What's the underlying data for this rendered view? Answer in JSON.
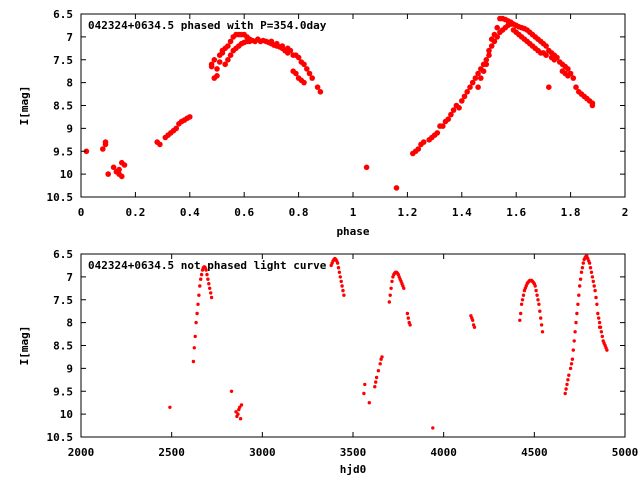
{
  "chart_data": [
    {
      "type": "scatter",
      "title": "042324+0634.5 phased with P=354.0day",
      "xlabel": "phase",
      "ylabel": "I[mag]",
      "xlim": [
        0,
        2
      ],
      "ylim": [
        10.5,
        6.5
      ],
      "y_inverted": true,
      "xticks": [
        0,
        0.2,
        0.4,
        0.6,
        0.8,
        1,
        1.2,
        1.4,
        1.6,
        1.8,
        2
      ],
      "xtick_labels": [
        "0",
        "0.2",
        "0.4",
        "0.6",
        "0.8",
        "1",
        "1.2",
        "1.4",
        "1.6",
        "1.8",
        "2"
      ],
      "yticks": [
        6.5,
        7,
        7.5,
        8,
        8.5,
        9,
        9.5,
        10,
        10.5
      ],
      "ytick_labels": [
        "6.5",
        "7",
        "7.5",
        "8",
        "8.5",
        "9",
        "9.5",
        "10",
        "10.5"
      ],
      "grid": false,
      "marker": "filled-circle",
      "color": "#ff0000",
      "points": [
        [
          0.02,
          9.5
        ],
        [
          0.08,
          9.45
        ],
        [
          0.09,
          9.35
        ],
        [
          0.09,
          9.3
        ],
        [
          0.1,
          10.0
        ],
        [
          0.12,
          9.85
        ],
        [
          0.13,
          9.95
        ],
        [
          0.14,
          10.0
        ],
        [
          0.14,
          9.9
        ],
        [
          0.15,
          10.05
        ],
        [
          0.15,
          9.75
        ],
        [
          0.16,
          9.8
        ],
        [
          0.28,
          9.3
        ],
        [
          0.29,
          9.35
        ],
        [
          0.31,
          9.2
        ],
        [
          0.32,
          9.15
        ],
        [
          0.33,
          9.1
        ],
        [
          0.34,
          9.05
        ],
        [
          0.35,
          9.0
        ],
        [
          0.36,
          8.9
        ],
        [
          0.37,
          8.85
        ],
        [
          0.38,
          8.82
        ],
        [
          0.39,
          8.78
        ],
        [
          0.4,
          8.75
        ],
        [
          0.48,
          7.65
        ],
        [
          0.48,
          7.6
        ],
        [
          0.49,
          7.9
        ],
        [
          0.49,
          7.5
        ],
        [
          0.5,
          7.85
        ],
        [
          0.5,
          7.7
        ],
        [
          0.51,
          7.55
        ],
        [
          0.51,
          7.4
        ],
        [
          0.52,
          7.35
        ],
        [
          0.52,
          7.3
        ],
        [
          0.53,
          7.25
        ],
        [
          0.53,
          7.6
        ],
        [
          0.54,
          7.2
        ],
        [
          0.54,
          7.5
        ],
        [
          0.55,
          7.1
        ],
        [
          0.55,
          7.4
        ],
        [
          0.56,
          7.0
        ],
        [
          0.56,
          7.3
        ],
        [
          0.57,
          6.95
        ],
        [
          0.57,
          7.25
        ],
        [
          0.58,
          6.95
        ],
        [
          0.58,
          7.2
        ],
        [
          0.59,
          6.95
        ],
        [
          0.59,
          7.15
        ],
        [
          0.6,
          6.95
        ],
        [
          0.6,
          7.12
        ],
        [
          0.61,
          7.0
        ],
        [
          0.61,
          7.1
        ],
        [
          0.62,
          7.05
        ],
        [
          0.62,
          7.1
        ],
        [
          0.63,
          7.08
        ],
        [
          0.64,
          7.1
        ],
        [
          0.65,
          7.05
        ],
        [
          0.66,
          7.1
        ],
        [
          0.67,
          7.08
        ],
        [
          0.68,
          7.1
        ],
        [
          0.69,
          7.12
        ],
        [
          0.7,
          7.15
        ],
        [
          0.7,
          7.1
        ],
        [
          0.71,
          7.18
        ],
        [
          0.72,
          7.2
        ],
        [
          0.72,
          7.15
        ],
        [
          0.73,
          7.22
        ],
        [
          0.74,
          7.25
        ],
        [
          0.74,
          7.2
        ],
        [
          0.75,
          7.3
        ],
        [
          0.76,
          7.35
        ],
        [
          0.76,
          7.25
        ],
        [
          0.77,
          7.3
        ],
        [
          0.78,
          7.75
        ],
        [
          0.78,
          7.4
        ],
        [
          0.79,
          7.8
        ],
        [
          0.79,
          7.4
        ],
        [
          0.8,
          7.9
        ],
        [
          0.8,
          7.45
        ],
        [
          0.81,
          7.95
        ],
        [
          0.81,
          7.55
        ],
        [
          0.82,
          8.0
        ],
        [
          0.82,
          7.6
        ],
        [
          0.83,
          7.7
        ],
        [
          0.84,
          7.8
        ],
        [
          0.85,
          7.9
        ],
        [
          0.87,
          8.1
        ],
        [
          0.88,
          8.2
        ],
        [
          1.05,
          9.85
        ],
        [
          1.16,
          10.3
        ],
        [
          1.22,
          9.55
        ],
        [
          1.23,
          9.5
        ],
        [
          1.24,
          9.45
        ],
        [
          1.25,
          9.35
        ],
        [
          1.26,
          9.3
        ],
        [
          1.28,
          9.25
        ],
        [
          1.29,
          9.2
        ],
        [
          1.3,
          9.15
        ],
        [
          1.31,
          9.1
        ],
        [
          1.32,
          8.95
        ],
        [
          1.33,
          8.95
        ],
        [
          1.34,
          8.85
        ],
        [
          1.35,
          8.8
        ],
        [
          1.36,
          8.7
        ],
        [
          1.37,
          8.6
        ],
        [
          1.38,
          8.5
        ],
        [
          1.39,
          8.55
        ],
        [
          1.4,
          8.4
        ],
        [
          1.41,
          8.3
        ],
        [
          1.42,
          8.2
        ],
        [
          1.43,
          8.1
        ],
        [
          1.44,
          8.0
        ],
        [
          1.45,
          7.9
        ],
        [
          1.46,
          7.8
        ],
        [
          1.46,
          8.1
        ],
        [
          1.47,
          7.7
        ],
        [
          1.47,
          7.9
        ],
        [
          1.48,
          7.6
        ],
        [
          1.48,
          7.75
        ],
        [
          1.49,
          7.5
        ],
        [
          1.49,
          7.6
        ],
        [
          1.5,
          7.4
        ],
        [
          1.5,
          7.3
        ],
        [
          1.51,
          7.2
        ],
        [
          1.51,
          7.05
        ],
        [
          1.52,
          7.1
        ],
        [
          1.52,
          6.95
        ],
        [
          1.53,
          7.0
        ],
        [
          1.53,
          6.8
        ],
        [
          1.54,
          6.9
        ],
        [
          1.54,
          6.6
        ],
        [
          1.55,
          6.85
        ],
        [
          1.55,
          6.6
        ],
        [
          1.56,
          6.8
        ],
        [
          1.56,
          6.62
        ],
        [
          1.57,
          6.75
        ],
        [
          1.57,
          6.65
        ],
        [
          1.58,
          6.72
        ],
        [
          1.58,
          6.68
        ],
        [
          1.59,
          6.72
        ],
        [
          1.59,
          6.85
        ],
        [
          1.6,
          6.75
        ],
        [
          1.6,
          6.9
        ],
        [
          1.61,
          6.78
        ],
        [
          1.61,
          6.95
        ],
        [
          1.62,
          6.8
        ],
        [
          1.62,
          7.0
        ],
        [
          1.63,
          6.82
        ],
        [
          1.63,
          7.05
        ],
        [
          1.64,
          6.85
        ],
        [
          1.64,
          7.1
        ],
        [
          1.65,
          6.9
        ],
        [
          1.65,
          7.15
        ],
        [
          1.66,
          6.95
        ],
        [
          1.66,
          7.2
        ],
        [
          1.67,
          7.0
        ],
        [
          1.67,
          7.25
        ],
        [
          1.68,
          7.05
        ],
        [
          1.68,
          7.3
        ],
        [
          1.69,
          7.1
        ],
        [
          1.69,
          7.35
        ],
        [
          1.7,
          7.15
        ],
        [
          1.7,
          7.35
        ],
        [
          1.71,
          7.2
        ],
        [
          1.71,
          7.4
        ],
        [
          1.72,
          7.3
        ],
        [
          1.72,
          8.1
        ],
        [
          1.73,
          7.35
        ],
        [
          1.73,
          7.45
        ],
        [
          1.74,
          7.4
        ],
        [
          1.74,
          7.5
        ],
        [
          1.75,
          7.45
        ],
        [
          1.76,
          7.55
        ],
        [
          1.77,
          7.6
        ],
        [
          1.77,
          7.75
        ],
        [
          1.78,
          7.65
        ],
        [
          1.78,
          7.8
        ],
        [
          1.79,
          7.7
        ],
        [
          1.79,
          7.85
        ],
        [
          1.8,
          7.8
        ],
        [
          1.81,
          7.9
        ],
        [
          1.82,
          8.1
        ],
        [
          1.83,
          8.2
        ],
        [
          1.84,
          8.25
        ],
        [
          1.85,
          8.3
        ],
        [
          1.86,
          8.35
        ],
        [
          1.87,
          8.4
        ],
        [
          1.88,
          8.45
        ],
        [
          1.88,
          8.5
        ]
      ]
    },
    {
      "type": "scatter",
      "title": "042324+0634.5 not phased light curve",
      "xlabel": "hjd0",
      "ylabel": "I[mag]",
      "xlim": [
        2000,
        5000
      ],
      "ylim": [
        10.5,
        6.5
      ],
      "y_inverted": true,
      "xticks": [
        2000,
        2500,
        3000,
        3500,
        4000,
        4500,
        5000
      ],
      "xtick_labels": [
        "2000",
        "2500",
        "3000",
        "3500",
        "4000",
        "4500",
        "5000"
      ],
      "yticks": [
        6.5,
        7,
        7.5,
        8,
        8.5,
        9,
        9.5,
        10,
        10.5
      ],
      "ytick_labels": [
        "6.5",
        "7",
        "7.5",
        "8",
        "8.5",
        "9",
        "9.5",
        "10",
        "10.5"
      ],
      "grid": false,
      "marker": "small-dot",
      "color": "#ff0000",
      "points": [
        [
          2490,
          9.85
        ],
        [
          2620,
          8.85
        ],
        [
          2625,
          8.55
        ],
        [
          2630,
          8.3
        ],
        [
          2635,
          8.0
        ],
        [
          2640,
          7.8
        ],
        [
          2645,
          7.6
        ],
        [
          2650,
          7.4
        ],
        [
          2655,
          7.2
        ],
        [
          2660,
          7.05
        ],
        [
          2665,
          6.95
        ],
        [
          2670,
          6.85
        ],
        [
          2675,
          6.8
        ],
        [
          2680,
          6.78
        ],
        [
          2685,
          6.8
        ],
        [
          2690,
          6.85
        ],
        [
          2695,
          6.95
        ],
        [
          2700,
          7.05
        ],
        [
          2705,
          7.15
        ],
        [
          2710,
          7.25
        ],
        [
          2715,
          7.35
        ],
        [
          2720,
          7.45
        ],
        [
          2830,
          9.5
        ],
        [
          2855,
          9.95
        ],
        [
          2860,
          10.05
        ],
        [
          2865,
          10.0
        ],
        [
          2870,
          9.9
        ],
        [
          2875,
          9.85
        ],
        [
          2880,
          10.1
        ],
        [
          2885,
          9.8
        ],
        [
          3380,
          6.75
        ],
        [
          3385,
          6.7
        ],
        [
          3390,
          6.65
        ],
        [
          3395,
          6.62
        ],
        [
          3400,
          6.6
        ],
        [
          3405,
          6.62
        ],
        [
          3410,
          6.65
        ],
        [
          3415,
          6.7
        ],
        [
          3420,
          6.8
        ],
        [
          3425,
          6.9
        ],
        [
          3430,
          7.0
        ],
        [
          3435,
          7.1
        ],
        [
          3440,
          7.2
        ],
        [
          3445,
          7.3
        ],
        [
          3450,
          7.4
        ],
        [
          3560,
          9.55
        ],
        [
          3565,
          9.35
        ],
        [
          3590,
          9.75
        ],
        [
          3620,
          9.4
        ],
        [
          3625,
          9.3
        ],
        [
          3630,
          9.2
        ],
        [
          3640,
          9.05
        ],
        [
          3650,
          8.9
        ],
        [
          3655,
          8.8
        ],
        [
          3660,
          8.75
        ],
        [
          3700,
          7.55
        ],
        [
          3705,
          7.4
        ],
        [
          3710,
          7.25
        ],
        [
          3715,
          7.1
        ],
        [
          3720,
          7.0
        ],
        [
          3725,
          6.95
        ],
        [
          3730,
          6.92
        ],
        [
          3735,
          6.9
        ],
        [
          3740,
          6.9
        ],
        [
          3745,
          6.92
        ],
        [
          3750,
          6.95
        ],
        [
          3755,
          7.0
        ],
        [
          3760,
          7.05
        ],
        [
          3765,
          7.1
        ],
        [
          3770,
          7.15
        ],
        [
          3775,
          7.2
        ],
        [
          3780,
          7.25
        ],
        [
          3800,
          7.8
        ],
        [
          3805,
          7.9
        ],
        [
          3810,
          8.0
        ],
        [
          3815,
          8.05
        ],
        [
          3940,
          10.3
        ],
        [
          4150,
          7.85
        ],
        [
          4155,
          7.9
        ],
        [
          4160,
          7.95
        ],
        [
          4165,
          8.05
        ],
        [
          4170,
          8.1
        ],
        [
          4420,
          7.95
        ],
        [
          4425,
          7.8
        ],
        [
          4430,
          7.6
        ],
        [
          4435,
          7.5
        ],
        [
          4440,
          7.4
        ],
        [
          4445,
          7.3
        ],
        [
          4450,
          7.25
        ],
        [
          4455,
          7.2
        ],
        [
          4460,
          7.15
        ],
        [
          4465,
          7.12
        ],
        [
          4470,
          7.1
        ],
        [
          4475,
          7.08
        ],
        [
          4480,
          7.08
        ],
        [
          4485,
          7.08
        ],
        [
          4490,
          7.1
        ],
        [
          4495,
          7.12
        ],
        [
          4500,
          7.15
        ],
        [
          4505,
          7.2
        ],
        [
          4510,
          7.3
        ],
        [
          4515,
          7.4
        ],
        [
          4520,
          7.5
        ],
        [
          4525,
          7.6
        ],
        [
          4530,
          7.75
        ],
        [
          4535,
          7.9
        ],
        [
          4540,
          8.05
        ],
        [
          4545,
          8.2
        ],
        [
          4670,
          9.55
        ],
        [
          4675,
          9.45
        ],
        [
          4680,
          9.35
        ],
        [
          4685,
          9.25
        ],
        [
          4690,
          9.15
        ],
        [
          4700,
          9.0
        ],
        [
          4705,
          8.9
        ],
        [
          4710,
          8.8
        ],
        [
          4715,
          8.6
        ],
        [
          4720,
          8.4
        ],
        [
          4725,
          8.2
        ],
        [
          4730,
          8.0
        ],
        [
          4735,
          7.8
        ],
        [
          4740,
          7.6
        ],
        [
          4745,
          7.4
        ],
        [
          4750,
          7.2
        ],
        [
          4755,
          7.05
        ],
        [
          4760,
          6.9
        ],
        [
          4765,
          6.8
        ],
        [
          4770,
          6.7
        ],
        [
          4775,
          6.62
        ],
        [
          4780,
          6.58
        ],
        [
          4785,
          6.55
        ],
        [
          4790,
          6.55
        ],
        [
          4795,
          6.6
        ],
        [
          4800,
          6.65
        ],
        [
          4805,
          6.7
        ],
        [
          4810,
          6.8
        ],
        [
          4815,
          6.9
        ],
        [
          4820,
          7.0
        ],
        [
          4825,
          7.1
        ],
        [
          4830,
          7.2
        ],
        [
          4835,
          7.3
        ],
        [
          4840,
          7.45
        ],
        [
          4845,
          7.6
        ],
        [
          4850,
          7.8
        ],
        [
          4855,
          7.9
        ],
        [
          4860,
          8.0
        ],
        [
          4865,
          8.1
        ],
        [
          4870,
          8.2
        ],
        [
          4875,
          8.3
        ],
        [
          4880,
          8.4
        ],
        [
          4885,
          8.45
        ],
        [
          4890,
          8.5
        ],
        [
          4895,
          8.55
        ],
        [
          4900,
          8.6
        ],
        [
          4860,
          8.1
        ]
      ]
    }
  ]
}
